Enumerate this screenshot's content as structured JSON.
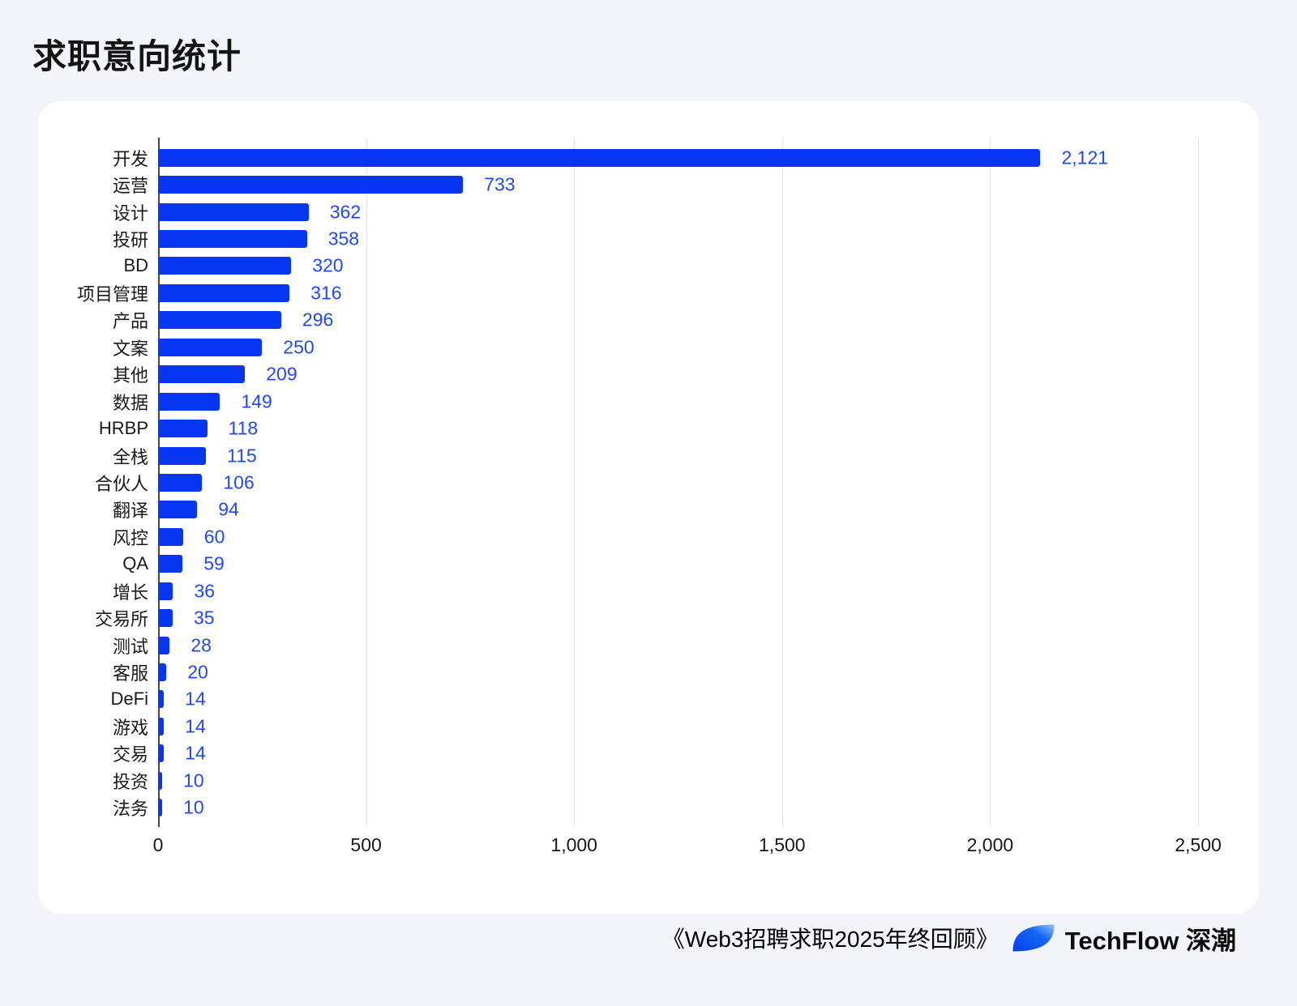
{
  "page": {
    "title": "求职意向统计",
    "background_color": "#f3f4fa",
    "card_color": "#ffffff"
  },
  "chart_data": {
    "type": "bar",
    "orientation": "horizontal",
    "title": "求职意向统计",
    "categories": [
      "开发",
      "运营",
      "设计",
      "投研",
      "BD",
      "项目管理",
      "产品",
      "文案",
      "其他",
      "数据",
      "HRBP",
      "全栈",
      "合伙人",
      "翻译",
      "风控",
      "QA",
      "增长",
      "交易所",
      "测试",
      "客服",
      "DeFi",
      "游戏",
      "交易",
      "投资",
      "法务"
    ],
    "values": [
      2121,
      733,
      362,
      358,
      320,
      316,
      296,
      250,
      209,
      149,
      118,
      115,
      106,
      94,
      60,
      59,
      36,
      35,
      28,
      20,
      14,
      14,
      14,
      10,
      10
    ],
    "xlim": [
      0,
      2500
    ],
    "x_ticks": [
      0,
      500,
      1000,
      1500,
      2000,
      2500
    ],
    "x_tick_labels": [
      "0",
      "500",
      "1,000",
      "1,500",
      "2,000",
      "2,500"
    ],
    "grid": true,
    "legend": false,
    "bar_color": "#0636f2",
    "value_label_color": "#2347f2",
    "axis_line_color": "#45464d",
    "gridline_color": "#e3e4ea"
  },
  "footer": {
    "source": "《Web3招聘求职2025年终回顾》",
    "brand": "TechFlow 深潮",
    "logo_color_main": "#0540ee",
    "logo_color_tip": "#8cc2fb"
  }
}
